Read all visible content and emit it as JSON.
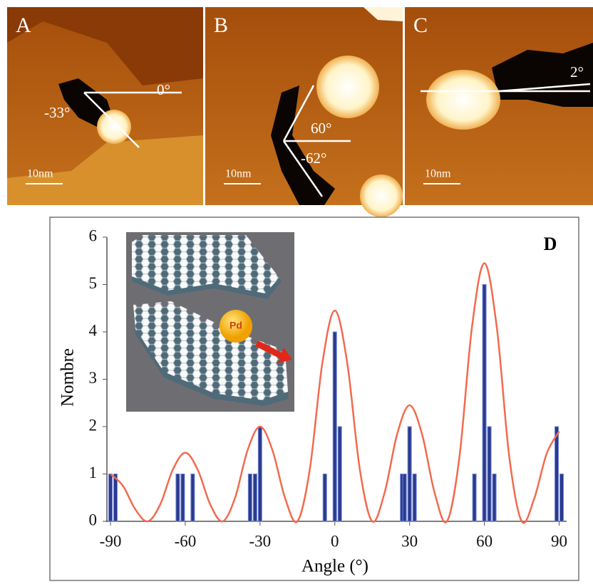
{
  "panels": [
    {
      "label": "A",
      "annotations": [
        "0°",
        "-33°"
      ],
      "scale": "10nm"
    },
    {
      "label": "B",
      "annotations": [
        "60°",
        "-62°"
      ],
      "scale": "10nm"
    },
    {
      "label": "C",
      "annotations": [
        "2°"
      ],
      "scale": "10nm"
    }
  ],
  "chart_data": {
    "type": "bar",
    "title": "D",
    "x_label": "Angle (°)",
    "y_label": "Nombre",
    "inset_label": "Pd",
    "x": [
      -90,
      -88,
      -63,
      -61,
      -57,
      -34,
      -32,
      -30,
      -4,
      0,
      2,
      27,
      28,
      30,
      32,
      56,
      60,
      62,
      64,
      89,
      91
    ],
    "values": [
      1,
      1,
      1,
      1,
      1,
      1,
      1,
      2,
      1,
      4,
      2,
      1,
      1,
      2,
      1,
      1,
      5,
      2,
      1,
      2,
      1
    ],
    "color": "#2b3a8c",
    "curve": {
      "type": "line",
      "color": "#f26a4f",
      "x": [
        -90,
        -85,
        -80,
        -75,
        -70,
        -65,
        -60,
        -55,
        -50,
        -45,
        -40,
        -35,
        -30,
        -25,
        -20,
        -15,
        -10,
        -5,
        0,
        5,
        10,
        15,
        20,
        25,
        30,
        35,
        40,
        45,
        50,
        55,
        60,
        65,
        70,
        75,
        80,
        85,
        90
      ],
      "values": [
        1.0,
        0.75,
        0.25,
        0,
        0.36,
        1.09,
        1.45,
        1.09,
        0.36,
        0,
        0.5,
        1.5,
        2.0,
        1.5,
        0.5,
        0,
        1.11,
        3.34,
        4.45,
        3.34,
        1.11,
        0,
        0.61,
        1.84,
        2.45,
        1.84,
        0.61,
        0,
        1.36,
        4.09,
        5.45,
        4.09,
        1.36,
        0,
        0.48,
        1.43,
        1.9
      ]
    },
    "xlim": [
      -92,
      93
    ],
    "ylim": [
      0,
      6
    ],
    "xticks": [
      -90,
      -60,
      -30,
      0,
      30,
      60,
      90
    ],
    "yticks": [
      0,
      1,
      2,
      3,
      4,
      5,
      6
    ]
  }
}
